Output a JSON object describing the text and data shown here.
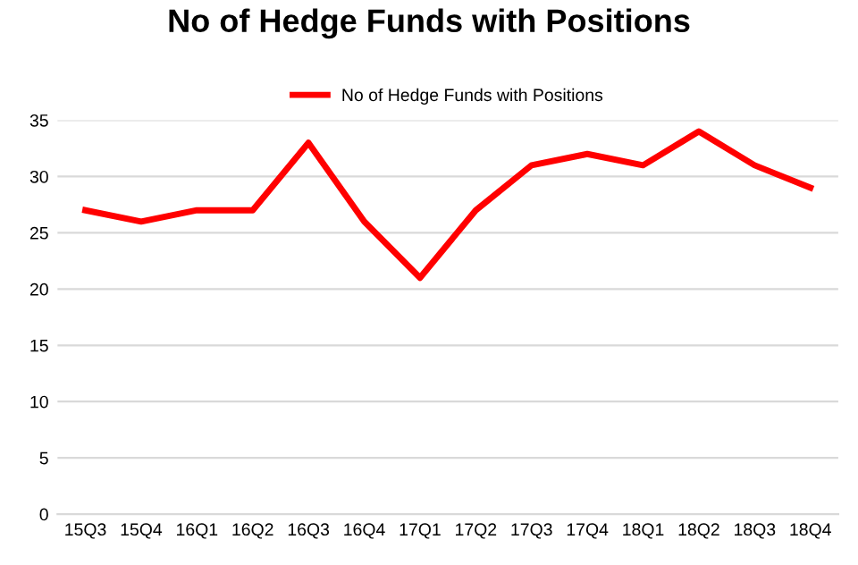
{
  "chart_data": {
    "type": "line",
    "title": "No of Hedge Funds with Positions",
    "categories": [
      "15Q3",
      "15Q4",
      "16Q1",
      "16Q2",
      "16Q3",
      "16Q4",
      "17Q1",
      "17Q2",
      "17Q3",
      "17Q4",
      "18Q1",
      "18Q2",
      "18Q3",
      "18Q4"
    ],
    "series": [
      {
        "name": "No of Hedge Funds with Positions",
        "color": "#ff0000",
        "values": [
          27,
          26,
          27,
          27,
          33,
          26,
          21,
          27,
          31,
          32,
          31,
          34,
          31,
          29
        ]
      }
    ],
    "ylim": [
      0,
      35
    ],
    "yticks": [
      0,
      5,
      10,
      15,
      20,
      25,
      30,
      35
    ],
    "grid": "y",
    "legend": "top",
    "marker": "none",
    "line_style": "solid"
  }
}
